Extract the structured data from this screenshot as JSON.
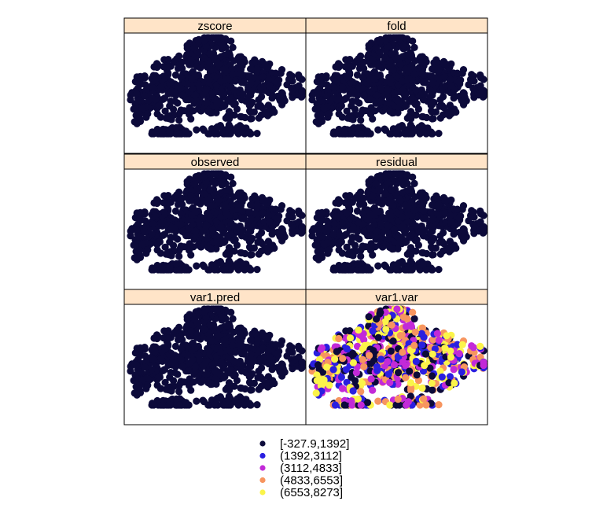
{
  "chart_data": {
    "type": "scatter",
    "layout": "lattice spplot, 2 columns x 3 rows of map panels sharing one point cloud",
    "panels": [
      {
        "title": "zscore",
        "class_index": 0
      },
      {
        "title": "fold",
        "class_index": 0
      },
      {
        "title": "observed",
        "class_index": 0
      },
      {
        "title": "residual",
        "class_index": 0
      },
      {
        "title": "var1.pred",
        "class_index": 0
      },
      {
        "title": "var1.var",
        "class_index": "mixed"
      }
    ],
    "legend": {
      "placement": "bottom",
      "entries": [
        {
          "label": "[-327.9,1392]",
          "color": "#0c0a3a"
        },
        {
          "label": "(1392,3112]",
          "color": "#2a1fe0"
        },
        {
          "label": "(3112,4833]",
          "color": "#c22ad8"
        },
        {
          "label": "(4833,6553]",
          "color": "#f7955f"
        },
        {
          "label": "(6553,8273]",
          "color": "#fbf44a"
        }
      ]
    },
    "strip_color": "#ffe4c8",
    "grid": false
  }
}
